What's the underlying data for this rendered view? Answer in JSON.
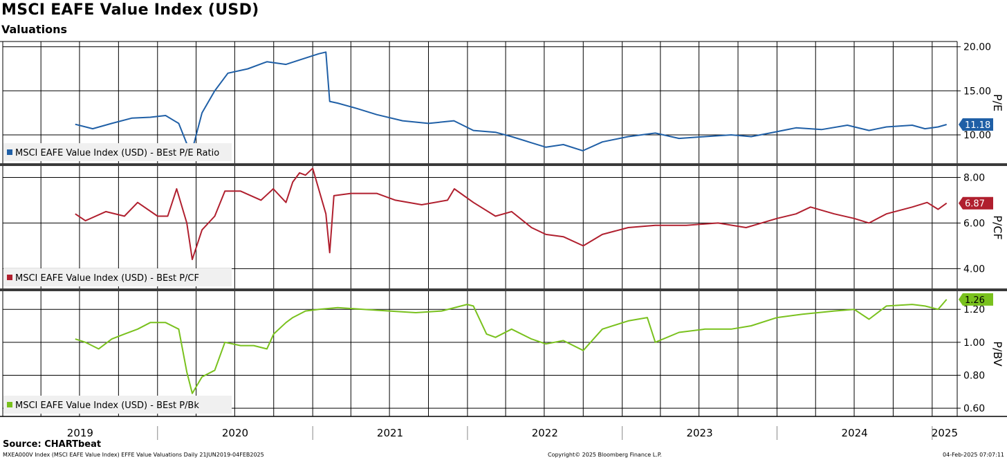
{
  "header": {
    "title": "MSCI EAFE Value Index (USD)",
    "subtitle": "Valuations"
  },
  "footer": {
    "source": "Source: CHARTbeat",
    "ticker_line": "MXEA000V Index (MSCI EAFE Value Index) EFFE Value Valuations  Daily 21JUN2019-04FEB2025",
    "copyright": "Copyright© 2025 Bloomberg Finance L.P.",
    "timestamp": "04-Feb-2025 07:07:11"
  },
  "chart_data": [
    {
      "type": "line",
      "panel": "pe",
      "ylabel": "P/E",
      "ylim": [
        6.7,
        20.6
      ],
      "yticks": [
        10,
        15,
        20
      ],
      "ytick_labels": [
        "10.00",
        "15.00",
        "20.00"
      ],
      "series": [
        {
          "name": "MSCI EAFE Value Index (USD) - BEst P/E Ratio",
          "color": "#1f5fa6",
          "last_value_label": "11.18",
          "x": [
            "2019-06-21",
            "2019-08-01",
            "2019-09-15",
            "2019-11-01",
            "2019-12-15",
            "2020-01-20",
            "2020-02-20",
            "2020-03-10",
            "2020-03-23",
            "2020-04-15",
            "2020-05-15",
            "2020-06-15",
            "2020-08-01",
            "2020-09-15",
            "2020-10-30",
            "2020-12-01",
            "2021-01-15",
            "2021-02-01",
            "2021-02-10",
            "2021-03-01",
            "2021-04-15",
            "2021-06-01",
            "2021-08-01",
            "2021-10-01",
            "2021-11-30",
            "2022-01-15",
            "2022-03-08",
            "2022-04-15",
            "2022-06-01",
            "2022-07-05",
            "2022-08-15",
            "2022-09-30",
            "2022-11-15",
            "2023-01-15",
            "2023-03-20",
            "2023-05-15",
            "2023-07-15",
            "2023-09-15",
            "2023-11-01",
            "2023-12-15",
            "2024-02-15",
            "2024-04-15",
            "2024-06-15",
            "2024-08-05",
            "2024-09-15",
            "2024-11-15",
            "2024-12-15",
            "2025-01-15",
            "2025-02-04"
          ],
          "values": [
            11.2,
            10.7,
            11.3,
            11.9,
            12.0,
            12.2,
            11.3,
            9.0,
            8.3,
            12.5,
            15.0,
            17.0,
            17.5,
            18.3,
            18.0,
            18.5,
            19.2,
            19.4,
            13.8,
            13.6,
            13.0,
            12.3,
            11.6,
            11.3,
            11.6,
            10.5,
            10.3,
            9.8,
            9.1,
            8.6,
            8.9,
            8.2,
            9.2,
            9.8,
            10.2,
            9.6,
            9.8,
            10.0,
            9.8,
            10.2,
            10.8,
            10.6,
            11.1,
            10.5,
            10.9,
            11.1,
            10.7,
            10.9,
            11.18
          ]
        }
      ]
    },
    {
      "type": "line",
      "panel": "pcf",
      "ylabel": "P/CF",
      "ylim": [
        3.1,
        8.5
      ],
      "yticks": [
        4,
        6,
        8
      ],
      "ytick_labels": [
        "4.00",
        "6.00",
        "8.00"
      ],
      "series": [
        {
          "name": "MSCI EAFE Value Index (USD) - BEst P/CF",
          "color": "#b01f2e",
          "last_value_label": "6.87",
          "x": [
            "2019-06-21",
            "2019-07-15",
            "2019-09-01",
            "2019-10-15",
            "2019-11-15",
            "2020-01-01",
            "2020-01-25",
            "2020-02-15",
            "2020-03-10",
            "2020-03-23",
            "2020-04-15",
            "2020-05-15",
            "2020-06-08",
            "2020-07-15",
            "2020-09-01",
            "2020-09-30",
            "2020-10-30",
            "2020-11-15",
            "2020-12-01",
            "2020-12-15",
            "2021-01-01",
            "2021-02-01",
            "2021-02-10",
            "2021-02-20",
            "2021-04-01",
            "2021-06-01",
            "2021-07-15",
            "2021-09-15",
            "2021-11-15",
            "2021-12-01",
            "2022-01-15",
            "2022-03-08",
            "2022-04-15",
            "2022-06-01",
            "2022-07-05",
            "2022-08-15",
            "2022-10-01",
            "2022-11-15",
            "2023-01-15",
            "2023-03-20",
            "2023-06-01",
            "2023-08-15",
            "2023-10-20",
            "2024-01-01",
            "2024-02-15",
            "2024-03-20",
            "2024-05-15",
            "2024-07-01",
            "2024-08-05",
            "2024-09-15",
            "2024-11-15",
            "2024-12-20",
            "2025-01-15",
            "2025-02-04"
          ],
          "values": [
            6.4,
            6.1,
            6.5,
            6.3,
            6.9,
            6.3,
            6.3,
            7.5,
            6.0,
            4.4,
            5.7,
            6.3,
            7.4,
            7.4,
            7.0,
            7.5,
            6.9,
            7.8,
            8.2,
            8.1,
            8.4,
            6.4,
            4.7,
            7.2,
            7.3,
            7.3,
            7.0,
            6.8,
            7.0,
            7.5,
            6.9,
            6.3,
            6.5,
            5.8,
            5.5,
            5.4,
            5.0,
            5.5,
            5.8,
            5.9,
            5.9,
            6.0,
            5.8,
            6.2,
            6.4,
            6.7,
            6.4,
            6.2,
            6.0,
            6.4,
            6.7,
            6.9,
            6.6,
            6.87
          ]
        }
      ]
    },
    {
      "type": "line",
      "panel": "pbv",
      "ylabel": "P/BV",
      "ylim": [
        0.55,
        1.31
      ],
      "yticks": [
        0.6,
        0.8,
        1.0,
        1.2
      ],
      "ytick_labels": [
        "0.60",
        "0.80",
        "1.00",
        "1.20"
      ],
      "series": [
        {
          "name": "MSCI EAFE Value Index (USD) - BEst P/Bk",
          "color": "#79c11d",
          "last_value_label": "1.26",
          "x": [
            "2019-06-21",
            "2019-07-15",
            "2019-08-15",
            "2019-09-15",
            "2019-10-15",
            "2019-11-15",
            "2019-12-15",
            "2020-01-20",
            "2020-02-20",
            "2020-03-10",
            "2020-03-23",
            "2020-04-15",
            "2020-05-15",
            "2020-06-08",
            "2020-07-15",
            "2020-08-15",
            "2020-09-15",
            "2020-10-01",
            "2020-10-30",
            "2020-11-15",
            "2020-12-15",
            "2021-01-15",
            "2021-03-01",
            "2021-05-01",
            "2021-07-01",
            "2021-09-01",
            "2021-11-01",
            "2021-12-31",
            "2022-01-15",
            "2022-02-15",
            "2022-03-08",
            "2022-04-15",
            "2022-06-01",
            "2022-07-05",
            "2022-08-15",
            "2022-10-01",
            "2022-11-15",
            "2023-01-15",
            "2023-03-01",
            "2023-03-20",
            "2023-05-15",
            "2023-07-15",
            "2023-09-15",
            "2023-11-01",
            "2024-01-01",
            "2024-03-01",
            "2024-05-15",
            "2024-07-01",
            "2024-08-05",
            "2024-09-15",
            "2024-11-15",
            "2024-12-15",
            "2025-01-15",
            "2025-02-04"
          ],
          "values": [
            1.02,
            1.0,
            0.96,
            1.02,
            1.05,
            1.08,
            1.12,
            1.12,
            1.08,
            0.82,
            0.69,
            0.79,
            0.83,
            1.0,
            0.98,
            0.98,
            0.96,
            1.05,
            1.12,
            1.15,
            1.19,
            1.2,
            1.21,
            1.2,
            1.19,
            1.18,
            1.19,
            1.23,
            1.22,
            1.05,
            1.03,
            1.08,
            1.02,
            0.99,
            1.01,
            0.95,
            1.08,
            1.13,
            1.15,
            1.0,
            1.06,
            1.08,
            1.08,
            1.1,
            1.15,
            1.17,
            1.19,
            1.2,
            1.14,
            1.22,
            1.23,
            1.22,
            1.2,
            1.26
          ]
        }
      ]
    }
  ],
  "x_axis": {
    "range": [
      "2019-01-01",
      "2025-03-01"
    ],
    "years": [
      "2019",
      "2020",
      "2021",
      "2022",
      "2023",
      "2024",
      "2025"
    ],
    "grid": true
  }
}
